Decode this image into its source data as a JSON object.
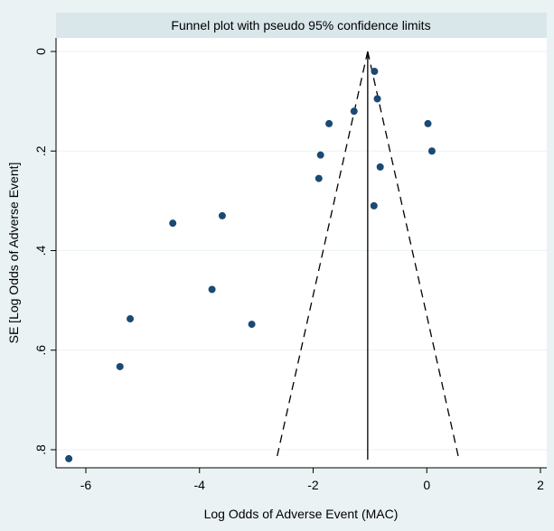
{
  "chart_data": {
    "type": "scatter",
    "title": "Funnel plot with pseudo 95% confidence limits",
    "xlabel": "Log Odds of Adverse Event (MAC)",
    "ylabel": "SE [Log Odds of Adverse Event]",
    "xlim": [
      -6.4,
      2.2
    ],
    "ylim": [
      0,
      0.82
    ],
    "y_axis_reversed": true,
    "grid": "horizontal",
    "legend": "none",
    "x_ticks": [
      {
        "value": -6,
        "label": "-6"
      },
      {
        "value": -4,
        "label": "-4"
      },
      {
        "value": -2,
        "label": "-2"
      },
      {
        "value": 0,
        "label": "0"
      },
      {
        "value": 2,
        "label": "2"
      }
    ],
    "y_ticks": [
      {
        "value": 0,
        "label": "0"
      },
      {
        "value": 0.2,
        "label": ".2"
      },
      {
        "value": 0.4,
        "label": ".4"
      },
      {
        "value": 0.6,
        "label": ".6"
      },
      {
        "value": 0.8,
        "label": ".8"
      }
    ],
    "pooled_estimate": -1.04,
    "funnel_max_se": 0.82,
    "points": [
      {
        "x": -0.92,
        "y": 0.04
      },
      {
        "x": -0.87,
        "y": 0.095
      },
      {
        "x": -1.28,
        "y": 0.12
      },
      {
        "x": -1.72,
        "y": 0.145
      },
      {
        "x": 0.02,
        "y": 0.145
      },
      {
        "x": -1.87,
        "y": 0.208
      },
      {
        "x": 0.09,
        "y": 0.2
      },
      {
        "x": -0.82,
        "y": 0.232
      },
      {
        "x": -1.9,
        "y": 0.255
      },
      {
        "x": -0.93,
        "y": 0.31
      },
      {
        "x": -3.6,
        "y": 0.33
      },
      {
        "x": -4.47,
        "y": 0.345
      },
      {
        "x": -3.78,
        "y": 0.478
      },
      {
        "x": -5.22,
        "y": 0.537
      },
      {
        "x": -3.08,
        "y": 0.548
      },
      {
        "x": -5.4,
        "y": 0.633
      },
      {
        "x": -6.3,
        "y": 0.818
      }
    ],
    "colors": {
      "marker": "#1a4a73",
      "background": "#eaf2f3",
      "plot_background": "#ffffff",
      "grid": "#eaf2f3",
      "title_band": "#d9e6ea",
      "line": "#000000"
    }
  }
}
